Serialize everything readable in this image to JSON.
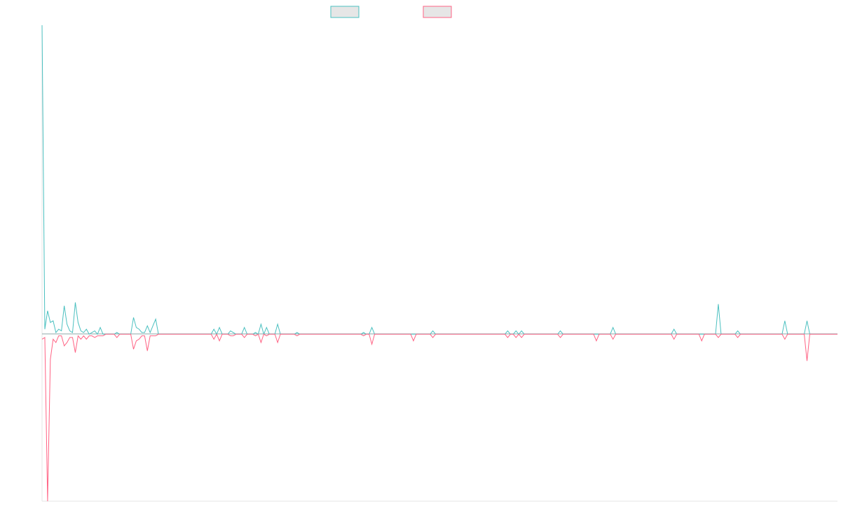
{
  "chart_data": {
    "type": "line",
    "title": "",
    "xlabel": "",
    "ylabel": "",
    "legend_position": "top-center",
    "grid": false,
    "ylim": [
      -100,
      185
    ],
    "xlim": [
      0,
      287
    ],
    "series": [
      {
        "color": "#4bc0c0",
        "values": [
          185,
          3,
          14,
          7,
          8,
          1,
          3,
          2,
          17,
          6,
          2,
          1,
          19,
          7,
          2,
          1,
          3,
          0,
          1,
          2,
          0,
          4,
          0,
          0,
          0,
          0,
          0,
          1,
          0,
          0,
          0,
          0,
          0,
          10,
          4,
          3,
          1,
          1,
          5,
          1,
          5,
          9,
          0,
          0,
          0,
          0,
          0,
          0,
          0,
          0,
          0,
          0,
          0,
          0,
          0,
          0,
          0,
          0,
          0,
          0,
          0,
          0,
          3,
          0,
          4,
          0,
          0,
          0,
          2,
          1,
          0,
          0,
          0,
          4,
          0,
          0,
          0,
          1,
          0,
          6,
          0,
          4,
          0,
          0,
          0,
          6,
          0,
          0,
          0,
          0,
          0,
          0,
          1,
          0,
          0,
          0,
          0,
          0,
          0,
          0,
          0,
          0,
          0,
          0,
          0,
          0,
          0,
          0,
          0,
          0,
          0,
          0,
          0,
          0,
          0,
          0,
          1,
          0,
          0,
          0,
          0,
          0,
          0,
          0,
          0,
          0,
          0,
          0,
          0,
          0,
          0,
          0,
          0,
          0,
          0,
          0,
          0,
          0,
          0,
          0,
          0,
          0,
          0,
          0,
          0,
          0,
          0,
          0,
          0,
          0,
          0,
          0,
          0,
          0,
          0,
          0,
          0,
          0,
          0,
          0,
          0,
          0,
          0,
          0,
          0,
          0,
          0,
          0,
          0,
          0,
          0,
          0,
          0,
          0,
          0,
          0,
          0,
          0,
          0,
          0,
          0,
          0,
          0,
          0,
          0,
          0,
          0,
          0,
          0,
          0,
          0,
          0,
          0,
          0,
          0,
          0,
          0,
          0,
          0,
          0,
          0,
          0,
          0,
          0,
          0,
          0,
          0,
          0,
          0,
          0,
          0,
          0,
          0,
          0,
          0,
          0,
          0,
          0,
          0,
          0,
          0,
          0,
          0,
          0,
          0,
          0,
          0,
          0,
          0,
          0,
          0,
          0,
          0,
          0,
          0,
          0,
          0,
          0,
          0,
          0,
          0,
          0,
          0,
          0,
          0,
          0,
          0,
          0,
          0,
          0,
          0,
          0,
          0,
          0,
          0,
          0,
          0,
          0,
          0,
          0,
          0,
          0,
          0,
          0,
          0,
          0,
          0,
          0,
          0,
          0,
          0,
          0,
          0,
          0,
          0,
          0,
          0,
          0,
          0,
          0,
          0,
          0,
          0,
          0,
          0
        ]
      },
      {
        "color": "#ff6384",
        "values": [
          -3,
          -2,
          -100,
          -15,
          -3,
          -5,
          -1,
          -1,
          -7,
          -5,
          -2,
          -2,
          -11,
          -1,
          -3,
          -1,
          -3,
          -1,
          -1,
          -2,
          -1,
          -1,
          -1,
          0,
          0,
          0,
          0,
          -2,
          0,
          0,
          0,
          0,
          0,
          -9,
          -4,
          -3,
          -1,
          -1,
          -10,
          -1,
          -1,
          -1,
          0,
          0,
          0,
          0,
          0,
          0,
          0,
          0,
          0,
          0,
          0,
          0,
          0,
          0,
          0,
          0,
          0,
          0,
          0,
          0,
          -3,
          0,
          -4,
          0,
          0,
          0,
          -1,
          -1,
          0,
          0,
          0,
          -2,
          0,
          0,
          0,
          -1,
          0,
          -5,
          0,
          -1,
          0,
          0,
          0,
          -5,
          0,
          0,
          0,
          0,
          0,
          0,
          -1,
          0,
          0,
          0,
          0,
          0,
          0,
          0,
          0,
          0,
          0,
          0,
          0,
          0,
          0,
          0,
          0,
          0,
          0,
          0,
          0,
          0,
          0,
          0,
          -1,
          0,
          0,
          0,
          0,
          0,
          0,
          0,
          0,
          0,
          0,
          0,
          0,
          0,
          0,
          0,
          0,
          0,
          0,
          0,
          0,
          0,
          0,
          0,
          0,
          0,
          0,
          0,
          0,
          0,
          0,
          0,
          0,
          0,
          0,
          0,
          0,
          0,
          0,
          0,
          0,
          0,
          0,
          0,
          0,
          0,
          0,
          0,
          0,
          0,
          0,
          0,
          0,
          0,
          0,
          0,
          0,
          0,
          0,
          0,
          0,
          0,
          0,
          0,
          0,
          0,
          0,
          0,
          0,
          0,
          0,
          0,
          0,
          0,
          0,
          0,
          0,
          0,
          0,
          0,
          0,
          0,
          0,
          0,
          0,
          0,
          0,
          0,
          0,
          0,
          0,
          0,
          0,
          0,
          0,
          0,
          0,
          0,
          0,
          0,
          0,
          0,
          0,
          0,
          0,
          0,
          0,
          0,
          0,
          0,
          0,
          0,
          0,
          0,
          0,
          0,
          0,
          0,
          0,
          0,
          0,
          0,
          0,
          0,
          0,
          0,
          0,
          0,
          0,
          0,
          0,
          0,
          0,
          0,
          0,
          0,
          0,
          0,
          0,
          0,
          0,
          0,
          0,
          0,
          0,
          0,
          0,
          0,
          0,
          0,
          0,
          0,
          0,
          0,
          0,
          0,
          0,
          0,
          0,
          0,
          0,
          0,
          0,
          0,
          0,
          0
        ]
      }
    ],
    "spikes": [
      {
        "series": 0,
        "x": 119,
        "value": 4
      },
      {
        "series": 1,
        "x": 119,
        "value": -6
      },
      {
        "series": 1,
        "x": 134,
        "value": -4
      },
      {
        "series": 0,
        "x": 141,
        "value": 2
      },
      {
        "series": 1,
        "x": 141,
        "value": -2
      },
      {
        "series": 0,
        "x": 168,
        "value": 2
      },
      {
        "series": 1,
        "x": 168,
        "value": -2
      },
      {
        "series": 0,
        "x": 171,
        "value": 2
      },
      {
        "series": 1,
        "x": 171,
        "value": -2
      },
      {
        "series": 0,
        "x": 173,
        "value": 2
      },
      {
        "series": 1,
        "x": 173,
        "value": -2
      },
      {
        "series": 0,
        "x": 187,
        "value": 2
      },
      {
        "series": 1,
        "x": 187,
        "value": -2
      },
      {
        "series": 1,
        "x": 200,
        "value": -4
      },
      {
        "series": 0,
        "x": 206,
        "value": 4
      },
      {
        "series": 1,
        "x": 206,
        "value": -3
      },
      {
        "series": 0,
        "x": 228,
        "value": 3
      },
      {
        "series": 1,
        "x": 228,
        "value": -3
      },
      {
        "series": 1,
        "x": 238,
        "value": -4
      },
      {
        "series": 0,
        "x": 244,
        "value": 18
      },
      {
        "series": 1,
        "x": 244,
        "value": -2
      },
      {
        "series": 0,
        "x": 251,
        "value": 2
      },
      {
        "series": 1,
        "x": 251,
        "value": -2
      },
      {
        "series": 0,
        "x": 268,
        "value": 8
      },
      {
        "series": 1,
        "x": 268,
        "value": -3
      },
      {
        "series": 0,
        "x": 276,
        "value": 8
      },
      {
        "series": 1,
        "x": 276,
        "value": -16
      }
    ]
  }
}
